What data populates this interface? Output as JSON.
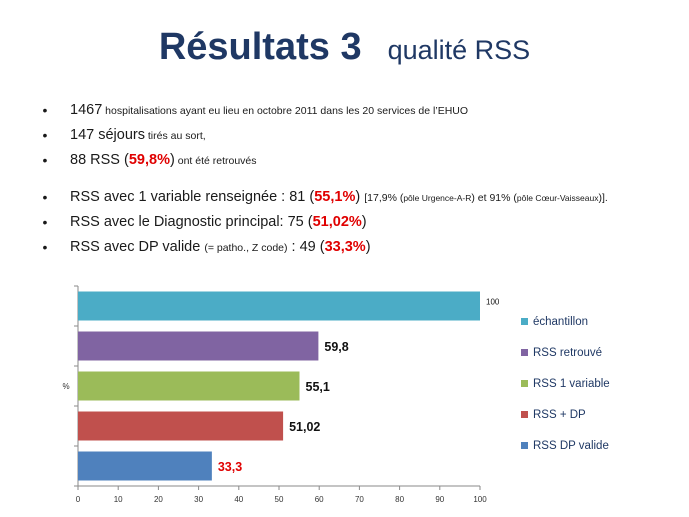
{
  "title": {
    "main": "Résultats 3",
    "sub": "qualité RSS"
  },
  "bullets": {
    "b1": {
      "num": "1467",
      "rest": " hospitalisations ayant eu lieu en octobre 2011 dans les 20 services de l’EHUO"
    },
    "b2": {
      "lead": "147 séjours",
      "rest": " tirés au sort,"
    },
    "b3": {
      "lead": "88 RSS (",
      "pct": "59,8%",
      "tail": ")",
      "rest": " ont été retrouvés"
    },
    "b4": {
      "lead": "RSS avec 1 variable renseignée : 81 (",
      "pct": "55,1%",
      "tail": ") ",
      "s1": "[17,9% (",
      "s2": "pôle Urgence-A-R",
      "s3": ") et 91% (",
      "s4": "pôle Cœur-Vaisseaux",
      "s5": ")].",
      "s6": ""
    },
    "b5": {
      "lead": "RSS avec le Diagnostic principal: 75 (",
      "pct": "51,02%",
      "tail": ")"
    },
    "b6": {
      "lead": "RSS avec DP valide ",
      "small": "(= patho., Z code)",
      "mid": " : 49 (",
      "pct": "33,3%",
      "tail": ")"
    }
  },
  "chart_data": {
    "type": "bar",
    "orientation": "horizontal",
    "categories": [
      "échantillon",
      "RSS retrouvé",
      "RSS 1 variable",
      "RSS + DP",
      "RSS DP valide"
    ],
    "values": [
      100,
      59.8,
      55.1,
      51.02,
      33.3
    ],
    "value_labels": [
      "100",
      "59,8",
      "55,1",
      "51,02",
      "33,3"
    ],
    "colors": [
      "#4bacc6",
      "#8064a2",
      "#9bbb59",
      "#c0504d",
      "#4f81bd"
    ],
    "label_colors": [
      "#111111",
      "#111111",
      "#111111",
      "#111111",
      "#e00000"
    ],
    "ylabel": "%",
    "xlim": [
      0,
      100
    ],
    "x_ticks": [
      "0",
      "10",
      "20",
      "30",
      "40",
      "50",
      "60",
      "70",
      "80",
      "90",
      "100"
    ],
    "legend_position": "right",
    "grid": false
  }
}
